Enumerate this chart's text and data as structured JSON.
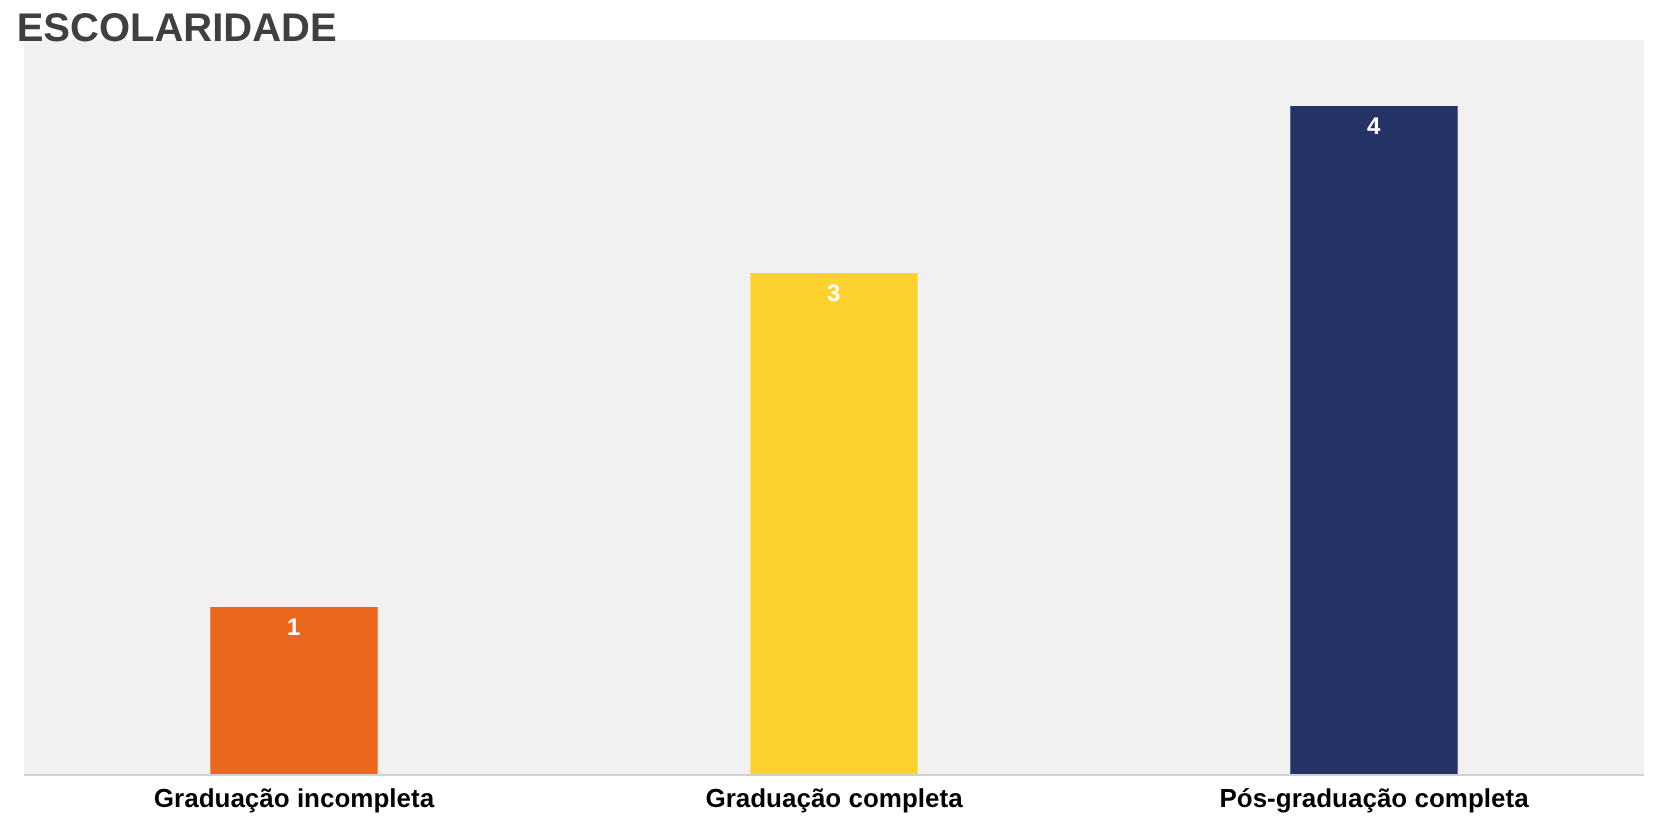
{
  "chart_data": {
    "type": "bar",
    "title": "ESCOLARIDADE",
    "categories": [
      "Graduação incompleta",
      "Graduação completa",
      "Pós-graduação completa"
    ],
    "values": [
      1,
      3,
      4
    ],
    "colors": [
      "#ec671e",
      "#fdd22f",
      "#263366"
    ],
    "data_labels": true,
    "tick_labels": "x",
    "grid": false
  }
}
